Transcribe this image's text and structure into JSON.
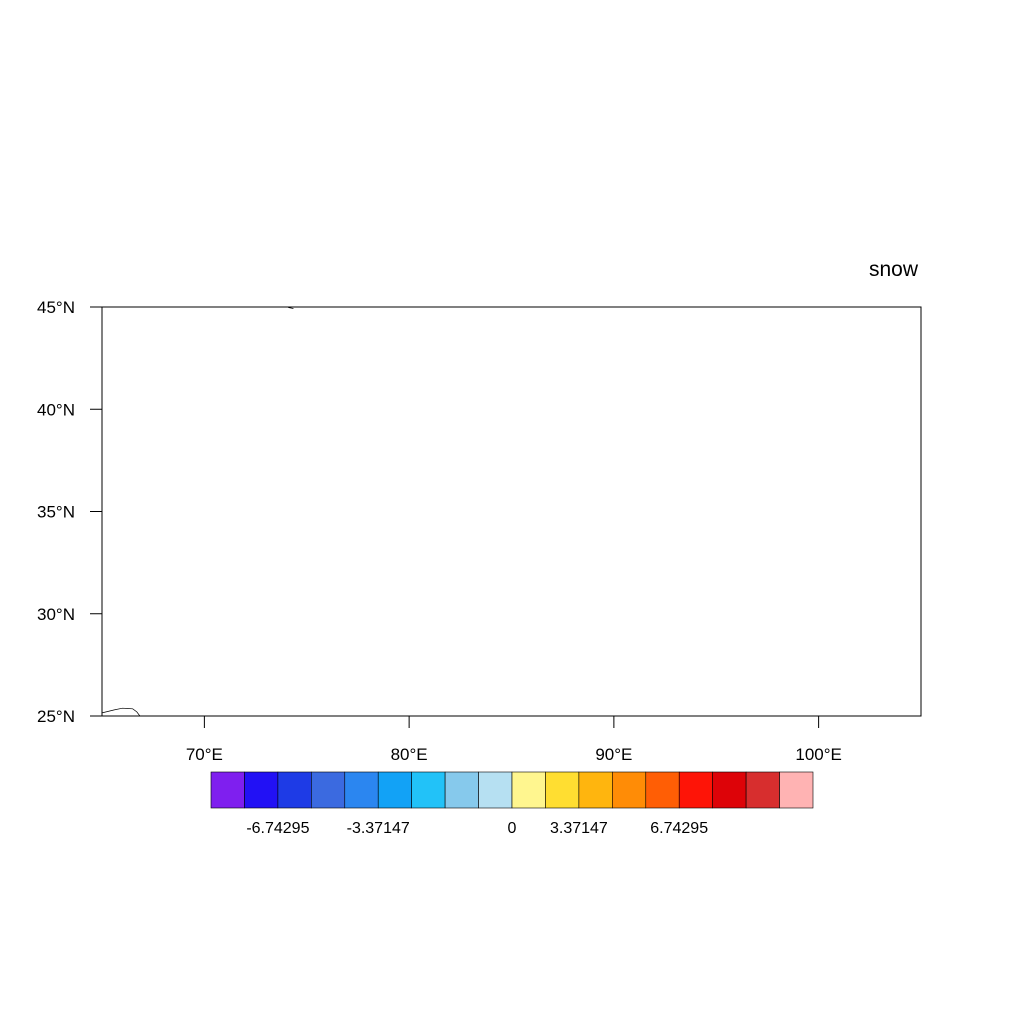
{
  "title": "snow",
  "map": {
    "lon_range": [
      65,
      105
    ],
    "lat_range": [
      25,
      45
    ],
    "lat_ticks": [
      {
        "value": 45,
        "label": "45°N"
      },
      {
        "value": 40,
        "label": "40°N"
      },
      {
        "value": 35,
        "label": "35°N"
      },
      {
        "value": 30,
        "label": "30°N"
      },
      {
        "value": 25,
        "label": "25°N"
      }
    ],
    "lon_ticks": [
      {
        "value": 70,
        "label": "70°E"
      },
      {
        "value": 80,
        "label": "80°E"
      },
      {
        "value": 90,
        "label": "90°E"
      },
      {
        "value": 100,
        "label": "100°E"
      }
    ],
    "coastline": [
      [
        65.0,
        25.15
      ],
      [
        65.6,
        25.3
      ],
      [
        66.0,
        25.38
      ],
      [
        66.5,
        25.35
      ],
      [
        66.7,
        25.2
      ],
      [
        66.85,
        25.0
      ]
    ]
  },
  "colorbar": {
    "colors": [
      "#7f1fef",
      "#2211f5",
      "#1e3be6",
      "#3b6ae0",
      "#2b86f0",
      "#12a2f6",
      "#22c2f8",
      "#86c9ec",
      "#b6e0f2",
      "#fff68f",
      "#ffde31",
      "#ffb50e",
      "#ff8c06",
      "#ff5e05",
      "#fe1407",
      "#dd0308",
      "#d72e2e",
      "#ffb3b3"
    ],
    "labels": [
      {
        "boundary": 2,
        "text": "-6.74295"
      },
      {
        "boundary": 5,
        "text": "-3.37147"
      },
      {
        "boundary": 9,
        "text": "0"
      },
      {
        "boundary": 11,
        "text": "3.37147"
      },
      {
        "boundary": 14,
        "text": "6.74295"
      }
    ]
  }
}
